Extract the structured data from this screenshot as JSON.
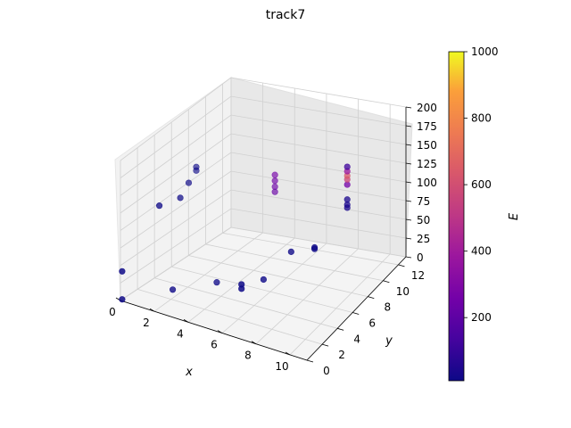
{
  "chart_data": {
    "type": "scatter3d",
    "title": "track7",
    "xlabel": "x",
    "ylabel": "y",
    "zlabel": "",
    "xlim": [
      0,
      11
    ],
    "ylim": [
      0,
      13
    ],
    "zlim": [
      0,
      200
    ],
    "x_ticks": [
      "0",
      "2",
      "4",
      "6",
      "8",
      "10"
    ],
    "y_ticks": [
      "0",
      "2",
      "4",
      "6",
      "8",
      "10",
      "12"
    ],
    "z_ticks": [
      "0",
      "25",
      "50",
      "75",
      "100",
      "125",
      "150",
      "175",
      "200"
    ],
    "colorbar": {
      "label": "E",
      "range": [
        10,
        1000
      ],
      "ticks": [
        "200",
        "400",
        "600",
        "800",
        "1000"
      ],
      "colormap": "plasma"
    },
    "grid": true,
    "points": [
      {
        "x": 0.0,
        "y": 0.2,
        "z": 40,
        "E": 10
      },
      {
        "x": 0.0,
        "y": 0.2,
        "z": 0,
        "E": 10
      },
      {
        "x": 1.5,
        "y": 3.2,
        "z": 0,
        "E": 10
      },
      {
        "x": 3.0,
        "y": 5.5,
        "z": 0,
        "E": 10
      },
      {
        "x": 4.5,
        "y": 5.5,
        "z": 0,
        "E": 10
      },
      {
        "x": 4.5,
        "y": 5.5,
        "z": 6,
        "E": 10
      },
      {
        "x": 5.0,
        "y": 7.2,
        "z": 0,
        "E": 10
      },
      {
        "x": 0.8,
        "y": 3.0,
        "z": 115,
        "E": 10
      },
      {
        "x": 1.3,
        "y": 4.5,
        "z": 116,
        "E": 10
      },
      {
        "x": 1.3,
        "y": 5.5,
        "z": 128,
        "E": 10
      },
      {
        "x": 1.3,
        "y": 6.4,
        "z": 142,
        "E": 10
      },
      {
        "x": 1.3,
        "y": 6.4,
        "z": 137,
        "E": 10
      },
      {
        "x": 6.0,
        "y": 8.6,
        "z": 30,
        "E": 10
      },
      {
        "x": 7.0,
        "y": 9.5,
        "z": 30,
        "E": 10
      },
      {
        "x": 7.0,
        "y": 9.5,
        "z": 32,
        "E": 10
      },
      {
        "x": 4.5,
        "y": 9.6,
        "z": 118,
        "E": 260
      },
      {
        "x": 4.5,
        "y": 9.6,
        "z": 110,
        "E": 250
      },
      {
        "x": 4.5,
        "y": 9.6,
        "z": 102,
        "E": 240
      },
      {
        "x": 4.5,
        "y": 9.6,
        "z": 95,
        "E": 230
      },
      {
        "x": 8.0,
        "y": 11.6,
        "z": 80,
        "E": 40
      },
      {
        "x": 8.0,
        "y": 11.6,
        "z": 73,
        "E": 40
      },
      {
        "x": 8.0,
        "y": 11.6,
        "z": 69,
        "E": 40
      },
      {
        "x": 8.0,
        "y": 11.6,
        "z": 100,
        "E": 260
      },
      {
        "x": 8.0,
        "y": 11.6,
        "z": 107,
        "E": 560
      },
      {
        "x": 8.0,
        "y": 11.6,
        "z": 112,
        "E": 640
      },
      {
        "x": 8.0,
        "y": 11.6,
        "z": 118,
        "E": 380
      },
      {
        "x": 8.0,
        "y": 11.6,
        "z": 124,
        "E": 120
      }
    ]
  }
}
